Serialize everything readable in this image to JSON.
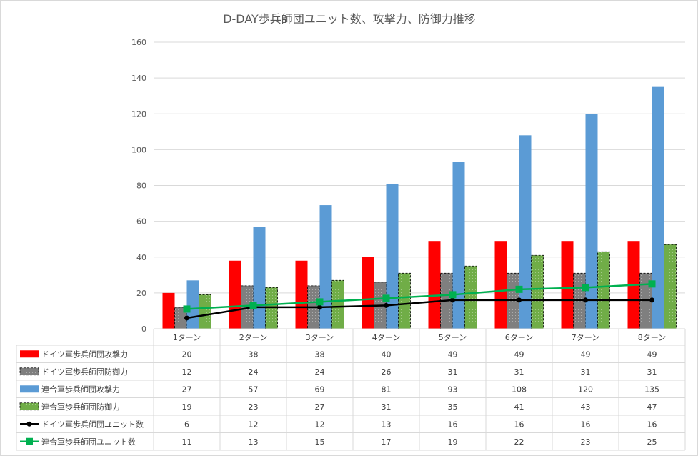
{
  "chart_data": {
    "type": "bar",
    "title": "D-DAY歩兵師団ユニット数、攻撃力、防御力推移",
    "categories": [
      "1ターン",
      "2ターン",
      "3ターン",
      "4ターン",
      "5ターン",
      "6ターン",
      "7ターン",
      "8ターン"
    ],
    "ylim": [
      0,
      160
    ],
    "yticks": [
      0,
      20,
      40,
      60,
      80,
      100,
      120,
      140,
      160
    ],
    "grid": true,
    "legend": "data-table",
    "series": [
      {
        "name": "ドイツ軍歩兵師団攻撃力",
        "type": "bar",
        "color": "#ff0000",
        "pattern": "solid",
        "values": [
          20,
          38,
          38,
          40,
          49,
          49,
          49,
          49
        ]
      },
      {
        "name": "ドイツ軍歩兵師団防御力",
        "type": "bar",
        "color": "#7f7f7f",
        "pattern": "dashed",
        "values": [
          12,
          24,
          24,
          26,
          31,
          31,
          31,
          31
        ]
      },
      {
        "name": "連合軍歩兵師団攻撃力",
        "type": "bar",
        "color": "#5b9bd5",
        "pattern": "solid",
        "values": [
          27,
          57,
          69,
          81,
          93,
          108,
          120,
          135
        ]
      },
      {
        "name": "連合軍歩兵師団防御力",
        "type": "bar",
        "color": "#70ad47",
        "pattern": "dashed",
        "values": [
          19,
          23,
          27,
          31,
          35,
          41,
          43,
          47
        ]
      },
      {
        "name": "ドイツ軍歩兵師団ユニット数",
        "type": "line",
        "color": "#000000",
        "marker": "circle",
        "values": [
          6,
          12,
          12,
          13,
          16,
          16,
          16,
          16
        ]
      },
      {
        "name": "連合軍歩兵師団ユニット数",
        "type": "line",
        "color": "#00b050",
        "marker": "square",
        "values": [
          11,
          13,
          15,
          17,
          19,
          22,
          23,
          25
        ]
      }
    ]
  }
}
